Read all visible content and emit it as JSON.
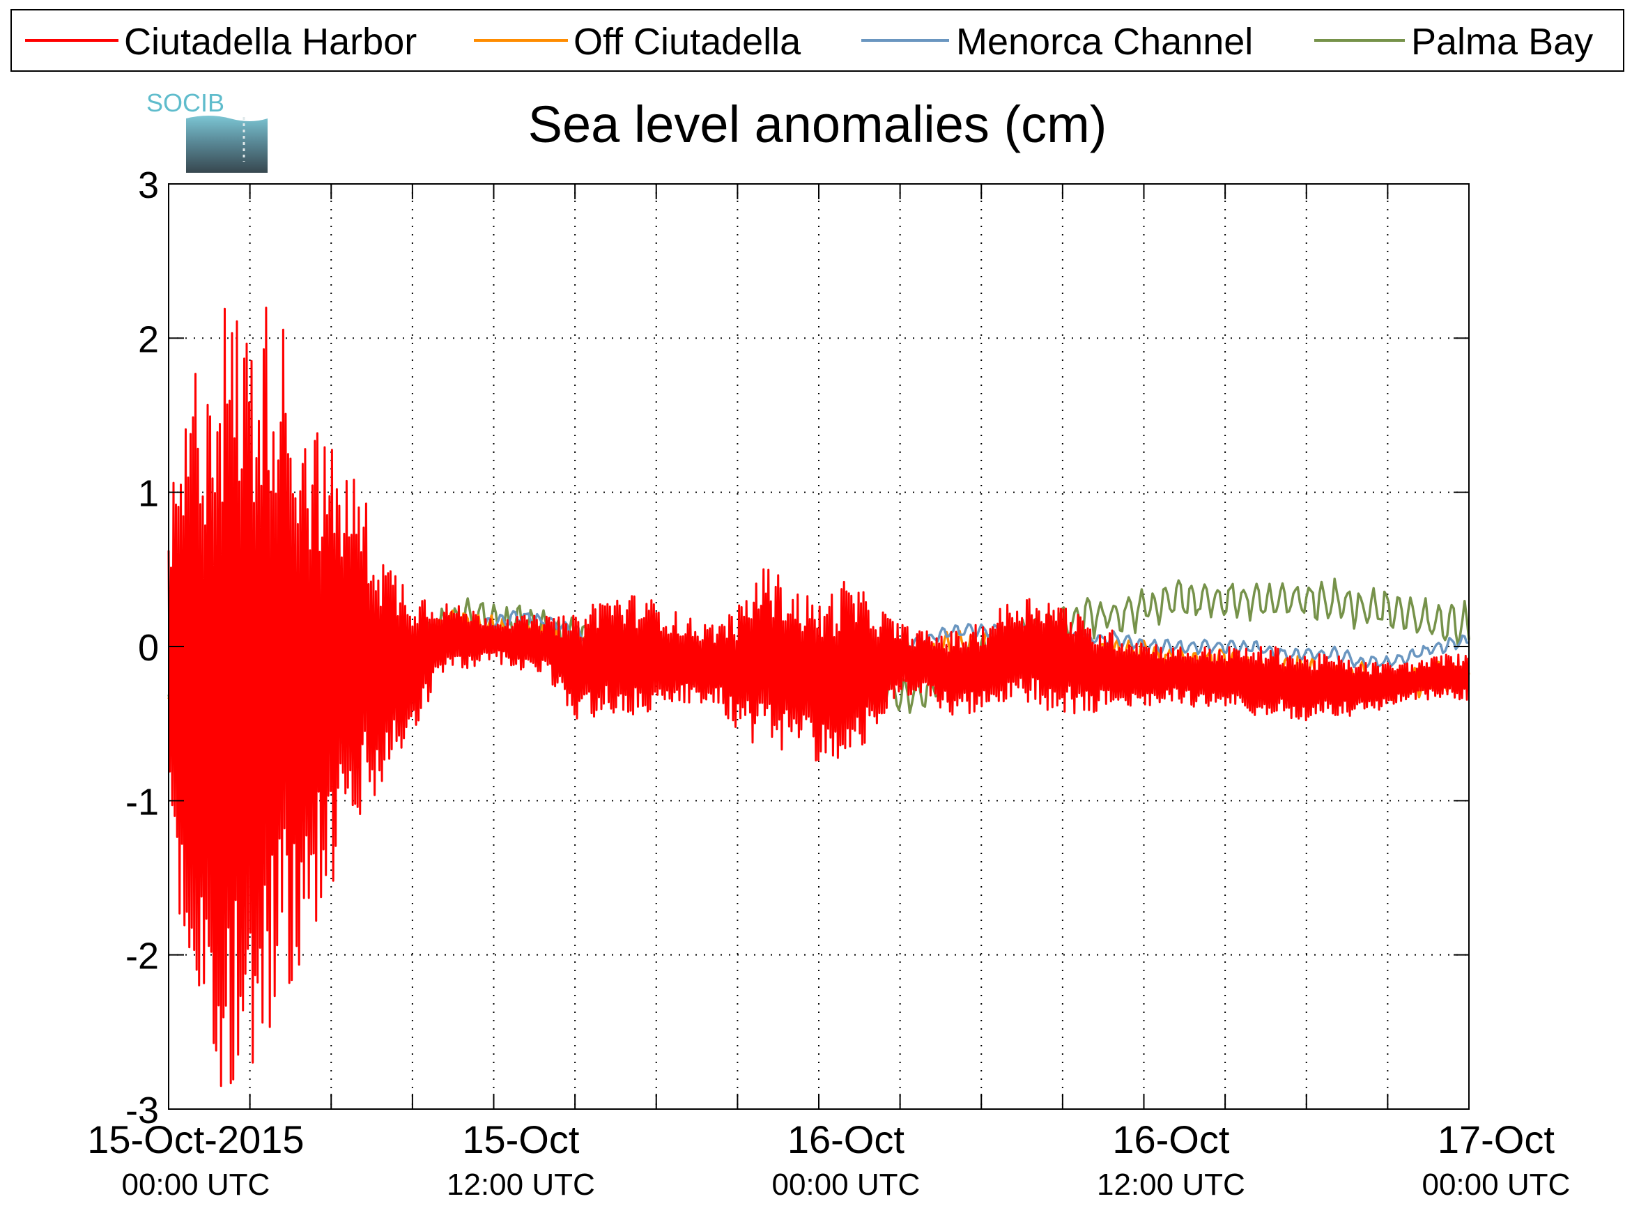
{
  "legend": {
    "entries": [
      {
        "label": "Ciutadella Harbor",
        "color": "#ff0000"
      },
      {
        "label": "Off Ciutadella",
        "color": "#ff8c00"
      },
      {
        "label": "Menorca Channel",
        "color": "#6a96c0"
      },
      {
        "label": "Palma Bay",
        "color": "#76924a"
      }
    ]
  },
  "logo": {
    "text": "SOCIB",
    "icon": "socib-logo-icon"
  },
  "chart_data": {
    "type": "line",
    "title": "Sea level anomalies (cm)",
    "xlabel": "",
    "ylabel": "",
    "ylim": [
      -3,
      3
    ],
    "yticks": [
      -3,
      -2,
      -1,
      0,
      1,
      2,
      3
    ],
    "ytick_labels": [
      "-3",
      "-2",
      "-1",
      "0",
      "1",
      "2",
      "3"
    ],
    "xlim_hours": [
      -1,
      47
    ],
    "xtick_hours": [
      2,
      5,
      8,
      11,
      14,
      17,
      20,
      23,
      26,
      29,
      32,
      35,
      38,
      41,
      44,
      47
    ],
    "xtick_labels": [
      {
        "hour": 0,
        "line1": "15-Oct-2015",
        "line2": "00:00 UTC"
      },
      {
        "hour": 12,
        "line1": "15-Oct",
        "line2": "12:00 UTC"
      },
      {
        "hour": 24,
        "line1": "16-Oct",
        "line2": "00:00 UTC"
      },
      {
        "hour": 36,
        "line1": "16-Oct",
        "line2": "12:00 UTC"
      },
      {
        "hour": 48,
        "line1": "17-Oct",
        "line2": "00:00 UTC"
      }
    ],
    "grid": true,
    "grid_style": "dotted",
    "legend_position": "top-outside",
    "series": [
      {
        "name": "Ciutadella Harbor",
        "color": "#ff0000",
        "envelope_hours": [
          -1,
          0,
          1,
          2,
          3,
          4,
          5,
          6,
          7,
          8,
          9,
          10,
          11,
          12,
          13,
          14,
          15,
          16,
          17,
          18,
          19,
          20,
          21,
          22,
          23,
          24,
          25,
          26,
          27,
          28,
          29,
          30,
          31,
          32,
          33,
          34,
          35,
          36,
          37,
          38,
          39,
          40,
          41,
          42,
          43,
          44,
          45,
          46,
          47
        ],
        "envelope_upper": [
          0.9,
          1.9,
          2.3,
          2.2,
          2.3,
          1.6,
          1.3,
          1.1,
          0.6,
          0.4,
          0.3,
          0.25,
          0.2,
          0.2,
          0.2,
          0.2,
          0.35,
          0.35,
          0.3,
          0.2,
          0.15,
          0.25,
          0.55,
          0.4,
          0.3,
          0.45,
          0.3,
          0.15,
          0.1,
          0.1,
          0.15,
          0.3,
          0.35,
          0.3,
          0.15,
          0.1,
          0.05,
          0.0,
          0.0,
          0.0,
          0.0,
          0.0,
          -0.05,
          -0.05,
          -0.1,
          -0.1,
          -0.1,
          -0.05,
          -0.05
        ],
        "envelope_lower": [
          -1.4,
          -2.5,
          -2.9,
          -2.8,
          -2.5,
          -2.0,
          -1.6,
          -1.2,
          -0.9,
          -0.6,
          -0.2,
          -0.15,
          -0.1,
          -0.15,
          -0.2,
          -0.5,
          -0.45,
          -0.5,
          -0.4,
          -0.4,
          -0.35,
          -0.55,
          -0.7,
          -0.65,
          -0.75,
          -0.85,
          -0.55,
          -0.35,
          -0.35,
          -0.45,
          -0.45,
          -0.4,
          -0.4,
          -0.45,
          -0.45,
          -0.4,
          -0.4,
          -0.35,
          -0.4,
          -0.4,
          -0.45,
          -0.45,
          -0.5,
          -0.45,
          -0.45,
          -0.4,
          -0.35,
          -0.35,
          -0.35
        ],
        "wave_period_hours": 0.18
      },
      {
        "name": "Off Ciutadella",
        "color": "#ff8c00",
        "x_hours": [
          -1,
          0,
          1,
          2,
          3,
          4,
          5,
          6,
          7,
          8,
          9,
          10,
          11,
          12,
          13,
          14,
          15,
          16,
          17,
          18,
          19,
          20,
          21,
          22,
          23,
          24,
          25,
          26,
          27,
          28,
          29,
          30,
          31,
          32,
          33,
          34,
          35,
          36,
          37,
          38,
          39,
          40,
          41,
          42,
          43,
          44,
          45,
          46,
          47
        ],
        "y": [
          -0.4,
          0.1,
          0.0,
          -0.1,
          -0.2,
          -0.3,
          -0.35,
          -0.25,
          -0.15,
          -0.1,
          0.1,
          0.15,
          0.1,
          0.05,
          0.05,
          0.0,
          0.0,
          -0.05,
          -0.05,
          -0.1,
          -0.15,
          -0.15,
          -0.15,
          -0.2,
          -0.15,
          -0.15,
          -0.1,
          -0.05,
          -0.05,
          0.0,
          0.0,
          -0.05,
          -0.05,
          -0.05,
          -0.05,
          -0.05,
          -0.05,
          -0.1,
          -0.1,
          -0.1,
          -0.15,
          -0.15,
          -0.15,
          -0.2,
          -0.2,
          -0.25,
          -0.25,
          -0.2,
          -0.2
        ],
        "noise": 0.12
      },
      {
        "name": "Menorca Channel",
        "color": "#6a96c0",
        "x_hours": [
          -1,
          0,
          1,
          2,
          3,
          4,
          5,
          6,
          7,
          8,
          9,
          10,
          11,
          12,
          13,
          14,
          15,
          16,
          17,
          18,
          19,
          20,
          21,
          22,
          23,
          24,
          25,
          26,
          27,
          28,
          29,
          30,
          31,
          32,
          33,
          34,
          35,
          36,
          37,
          38,
          39,
          40,
          41,
          42,
          43,
          44,
          45,
          46,
          47
        ],
        "y": [
          -0.1,
          0.05,
          0.0,
          -0.05,
          -0.1,
          -0.25,
          -0.35,
          -0.3,
          -0.25,
          -0.1,
          0.0,
          0.1,
          0.15,
          0.2,
          0.15,
          0.1,
          0.05,
          0.0,
          -0.05,
          -0.05,
          -0.1,
          -0.1,
          -0.15,
          -0.15,
          -0.15,
          -0.1,
          -0.05,
          0.0,
          0.05,
          0.1,
          0.1,
          0.1,
          0.1,
          0.05,
          0.05,
          0.05,
          0.0,
          0.0,
          0.0,
          0.0,
          0.0,
          -0.05,
          -0.05,
          -0.05,
          -0.1,
          -0.1,
          -0.05,
          0.0,
          0.05
        ],
        "noise": 0.05
      },
      {
        "name": "Palma Bay",
        "color": "#76924a",
        "x_hours": [
          -1,
          0,
          1,
          2,
          3,
          4,
          5,
          6,
          7,
          8,
          9,
          10,
          11,
          12,
          13,
          14,
          15,
          16,
          17,
          18,
          19,
          20,
          21,
          22,
          23,
          24,
          25,
          26,
          27,
          28,
          29,
          30,
          31,
          32,
          33,
          34,
          35,
          36,
          37,
          38,
          39,
          40,
          41,
          42,
          43,
          44,
          45,
          46,
          47
        ],
        "y": [
          -0.4,
          -0.3,
          -0.5,
          -0.45,
          -0.35,
          -0.55,
          -0.6,
          -0.45,
          -0.3,
          -0.1,
          0.1,
          0.2,
          0.15,
          0.15,
          0.1,
          0.05,
          0.0,
          -0.05,
          -0.05,
          -0.1,
          -0.1,
          -0.15,
          -0.15,
          -0.15,
          -0.2,
          -0.2,
          -0.25,
          -0.3,
          -0.3,
          -0.15,
          -0.05,
          0.0,
          0.1,
          0.15,
          0.2,
          0.2,
          0.25,
          0.3,
          0.3,
          0.3,
          0.3,
          0.3,
          0.3,
          0.3,
          0.25,
          0.25,
          0.2,
          0.15,
          0.15
        ],
        "noise": 0.15
      }
    ]
  }
}
